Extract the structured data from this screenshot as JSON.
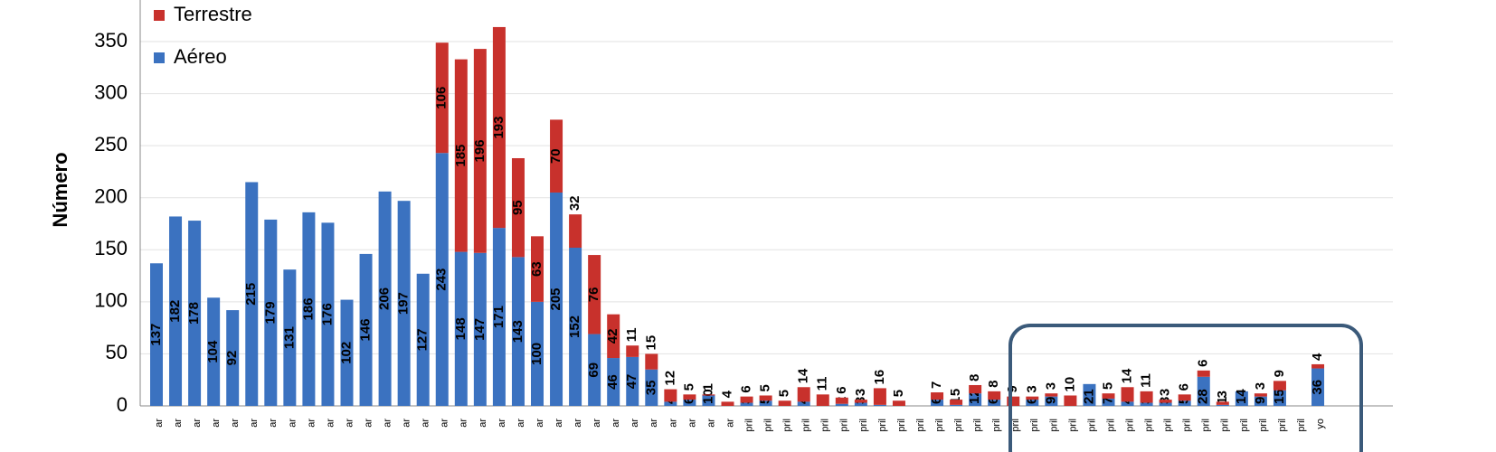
{
  "chart_data": {
    "type": "bar",
    "stacked": true,
    "ylabel": "Número",
    "categories": [
      "ar",
      "ar",
      "ar",
      "ar",
      "ar",
      "ar",
      "ar",
      "ar",
      "ar",
      "ar",
      "ar",
      "ar",
      "ar",
      "ar",
      "ar",
      "ar",
      "ar",
      "ar",
      "ar",
      "ar",
      "ar",
      "ar",
      "ar",
      "ar",
      "ar",
      "ar",
      "ar",
      "ar",
      "ar",
      "ar",
      "ar",
      "pril",
      "pril",
      "pril",
      "pril",
      "pril",
      "pril",
      "pril",
      "pril",
      "pril",
      "pril",
      "pril",
      "pril",
      "pril",
      "pril",
      "pril",
      "pril",
      "pril",
      "pril",
      "pril",
      "pril",
      "pril",
      "pril",
      "pril",
      "pril",
      "pril",
      "pril",
      "pril",
      "pril",
      "pril",
      "pril",
      "yo"
    ],
    "series": [
      {
        "name": "Aéreo",
        "color": "#3b72c0",
        "values": [
          137,
          182,
          178,
          104,
          92,
          215,
          179,
          131,
          186,
          176,
          102,
          146,
          206,
          197,
          127,
          243,
          148,
          147,
          171,
          143,
          100,
          205,
          152,
          69,
          46,
          47,
          35,
          4,
          6,
          10,
          null,
          3,
          5,
          null,
          4,
          null,
          2,
          3,
          1,
          null,
          null,
          6,
          1,
          12,
          6,
          null,
          6,
          9,
          null,
          21,
          7,
          4,
          3,
          3,
          5,
          28,
          1,
          14,
          9,
          15,
          null,
          36
        ]
      },
      {
        "name": "Terrestre",
        "color": "#c8312c",
        "values": [
          null,
          null,
          null,
          null,
          null,
          null,
          null,
          null,
          null,
          null,
          null,
          null,
          null,
          null,
          null,
          106,
          185,
          196,
          193,
          95,
          63,
          70,
          32,
          76,
          42,
          11,
          15,
          12,
          5,
          1,
          4,
          6,
          5,
          5,
          14,
          11,
          6,
          3,
          16,
          5,
          null,
          7,
          5,
          8,
          8,
          9,
          3,
          3,
          10,
          null,
          5,
          14,
          11,
          3,
          6,
          6,
          3,
          null,
          3,
          9,
          null,
          4
        ]
      }
    ],
    "ylim": [
      0,
      390
    ],
    "yticks": [
      0,
      50,
      100,
      150,
      200,
      250,
      300,
      350
    ],
    "grid": true,
    "legend": "top-left"
  }
}
